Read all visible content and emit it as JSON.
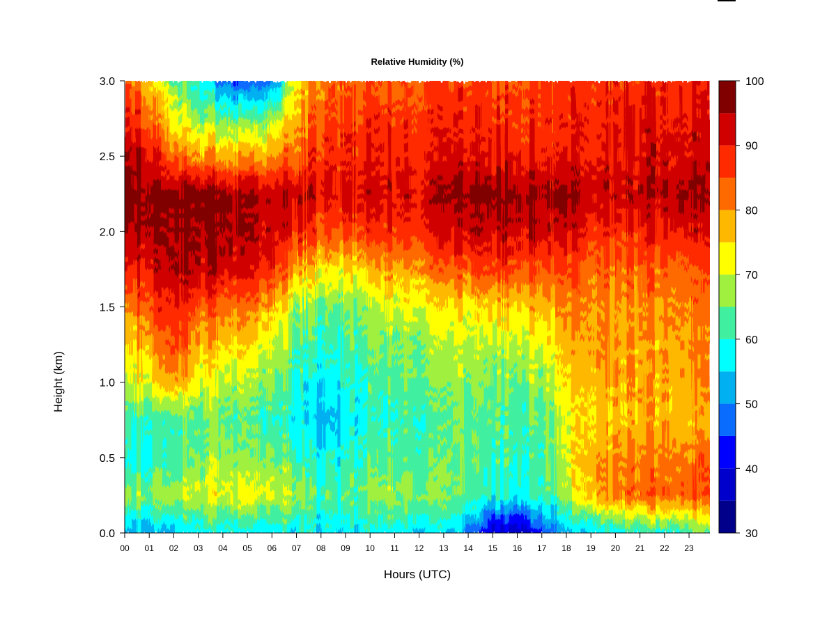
{
  "chart_data": {
    "type": "heatmap",
    "title": "Relative Humidity (%)",
    "xlabel": "Hours (UTC)",
    "ylabel": "Height (km)",
    "x_ticks": [
      "00",
      "01",
      "02",
      "03",
      "04",
      "05",
      "06",
      "07",
      "08",
      "09",
      "10",
      "11",
      "12",
      "13",
      "14",
      "15",
      "16",
      "17",
      "18",
      "19",
      "20",
      "21",
      "22",
      "23"
    ],
    "xlim": [
      0,
      23.85
    ],
    "y_ticks": [
      "0.0",
      "0.5",
      "1.0",
      "1.5",
      "2.0",
      "2.5",
      "3.0"
    ],
    "ylim": [
      0,
      3.0
    ],
    "colorbar": {
      "ticks": [
        "30",
        "40",
        "50",
        "60",
        "70",
        "80",
        "90",
        "100"
      ],
      "range": [
        30,
        100
      ],
      "levels": [
        {
          "from": 30,
          "to": 35,
          "color": "#00008b"
        },
        {
          "from": 35,
          "to": 40,
          "color": "#0000cd"
        },
        {
          "from": 40,
          "to": 45,
          "color": "#0000ff"
        },
        {
          "from": 45,
          "to": 50,
          "color": "#0a6cff"
        },
        {
          "from": 50,
          "to": 55,
          "color": "#00b0f0"
        },
        {
          "from": 55,
          "to": 60,
          "color": "#00ffff"
        },
        {
          "from": 60,
          "to": 65,
          "color": "#40f0a0"
        },
        {
          "from": 65,
          "to": 70,
          "color": "#a0f040"
        },
        {
          "from": 70,
          "to": 75,
          "color": "#ffff00"
        },
        {
          "from": 75,
          "to": 80,
          "color": "#ffb800"
        },
        {
          "from": 80,
          "to": 85,
          "color": "#ff6a00"
        },
        {
          "from": 85,
          "to": 90,
          "color": "#ff2a00"
        },
        {
          "from": 90,
          "to": 95,
          "color": "#d00000"
        },
        {
          "from": 95,
          "to": 100,
          "color": "#800000"
        }
      ]
    },
    "heights_km": [
      0.0,
      0.25,
      0.5,
      0.75,
      1.0,
      1.25,
      1.5,
      1.75,
      2.0,
      2.25,
      2.5,
      2.75,
      3.0
    ],
    "hours_utc": [
      0,
      1,
      2,
      3,
      4,
      5,
      6,
      7,
      8,
      9,
      10,
      11,
      12,
      13,
      14,
      15,
      16,
      17,
      18,
      19,
      20,
      21,
      22,
      23,
      23.85
    ],
    "values": [
      [
        52,
        54,
        56,
        57,
        58,
        58,
        57,
        57,
        56,
        56,
        58,
        58,
        57,
        55,
        50,
        38,
        36,
        44,
        52,
        56,
        57,
        59,
        60,
        62,
        63
      ],
      [
        66,
        68,
        70,
        71,
        72,
        72,
        72,
        68,
        62,
        62,
        66,
        68,
        67,
        66,
        64,
        60,
        58,
        62,
        66,
        78,
        82,
        83,
        84,
        84,
        83
      ],
      [
        58,
        60,
        64,
        66,
        67,
        67,
        66,
        62,
        58,
        58,
        62,
        64,
        64,
        64,
        64,
        62,
        61,
        63,
        70,
        79,
        81,
        81,
        82,
        82,
        82
      ],
      [
        60,
        62,
        64,
        64,
        64,
        63,
        62,
        57,
        53,
        55,
        59,
        62,
        62,
        63,
        64,
        63,
        62,
        64,
        70,
        76,
        77,
        77,
        77,
        77,
        76
      ],
      [
        68,
        72,
        82,
        72,
        70,
        69,
        67,
        60,
        56,
        58,
        62,
        64,
        65,
        65,
        66,
        66,
        65,
        67,
        73,
        78,
        79,
        78,
        78,
        79,
        79
      ],
      [
        74,
        80,
        88,
        78,
        76,
        75,
        72,
        64,
        60,
        61,
        64,
        66,
        67,
        68,
        69,
        69,
        69,
        71,
        76,
        80,
        79,
        78,
        79,
        80,
        79
      ],
      [
        79,
        87,
        91,
        85,
        83,
        82,
        80,
        67,
        64,
        65,
        68,
        70,
        72,
        73,
        74,
        76,
        76,
        77,
        80,
        81,
        80,
        80,
        81,
        81,
        80
      ],
      [
        88,
        93,
        96,
        94,
        93,
        92,
        90,
        78,
        74,
        74,
        77,
        79,
        81,
        83,
        85,
        87,
        86,
        85,
        85,
        84,
        83,
        83,
        84,
        84,
        83
      ],
      [
        95,
        97,
        98,
        96,
        96,
        95,
        94,
        89,
        85,
        85,
        87,
        88,
        89,
        91,
        93,
        94,
        93,
        92,
        91,
        89,
        88,
        89,
        90,
        91,
        89
      ],
      [
        98,
        99,
        99,
        98,
        97,
        96,
        95,
        93,
        91,
        91,
        92,
        93,
        92,
        95,
        97,
        98,
        97,
        96,
        95,
        94,
        93,
        94,
        95,
        96,
        94
      ],
      [
        94,
        93,
        85,
        80,
        79,
        79,
        81,
        84,
        88,
        88,
        89,
        90,
        89,
        90,
        91,
        91,
        90,
        89,
        89,
        90,
        90,
        91,
        92,
        92,
        91
      ],
      [
        90,
        86,
        75,
        68,
        64,
        64,
        68,
        78,
        84,
        86,
        87,
        88,
        88,
        88,
        88,
        88,
        88,
        87,
        87,
        89,
        89,
        90,
        90,
        90,
        89
      ],
      [
        84,
        78,
        68,
        58,
        50,
        44,
        50,
        74,
        82,
        84,
        84,
        85,
        85,
        86,
        86,
        86,
        86,
        86,
        86,
        88,
        88,
        88,
        89,
        89,
        88
      ]
    ]
  }
}
